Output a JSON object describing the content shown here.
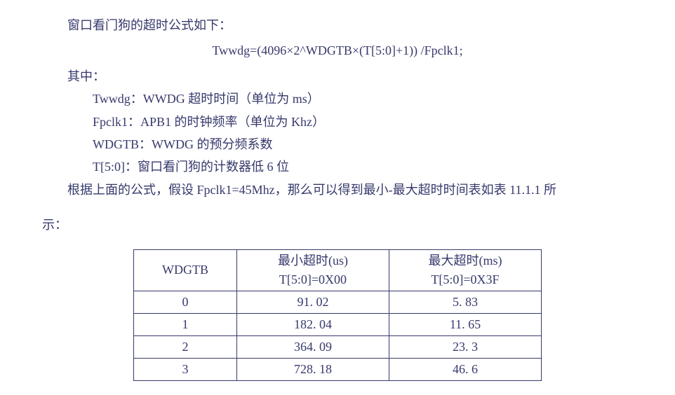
{
  "intro": "窗口看门狗的超时公式如下：",
  "formula": "Twwdg=(4096×2^WDGTB×(T[5:0]+1)) /Fpclk1;",
  "where_label": "其中：",
  "defs": {
    "d0": "Twwdg：WWDG 超时时间（单位为 ms）",
    "d1": "Fpclk1：APB1 的时钟频率（单位为 Khz）",
    "d2": "WDGTB：WWDG 的预分频系数",
    "d3": "T[5:0]：窗口看门狗的计数器低 6 位"
  },
  "conclusion_l1": "根据上面的公式，假设 Fpclk1=45Mhz，那么可以得到最小-最大超时时间表如表 11.1.1 所",
  "conclusion_l2": "示：",
  "table": {
    "header": {
      "c0": "WDGTB",
      "c1a": "最小超时(us)",
      "c1b": "T[5:0]=0X00",
      "c2a": "最大超时(ms)",
      "c2b": "T[5:0]=0X3F"
    },
    "rows": {
      "r0": {
        "c0": "0",
        "c1": "91. 02",
        "c2": "5. 83"
      },
      "r1": {
        "c0": "1",
        "c1": "182. 04",
        "c2": "11. 65"
      },
      "r2": {
        "c0": "2",
        "c1": "364. 09",
        "c2": "23. 3"
      },
      "r3": {
        "c0": "3",
        "c1": "728. 18",
        "c2": "46. 6"
      }
    }
  }
}
